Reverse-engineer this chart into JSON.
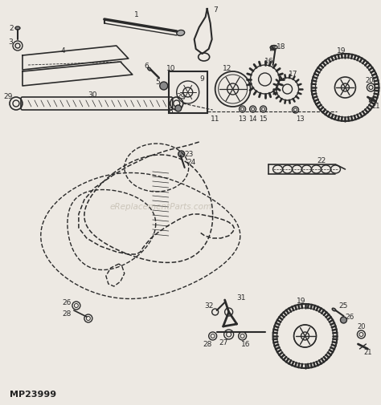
{
  "background_color": "#ede9e3",
  "watermark_text": "eReplacementParts.com",
  "watermark_color": "#b0a898",
  "watermark_alpha": 0.55,
  "part_number": "MP23999",
  "line_color": "#2a2a2a"
}
